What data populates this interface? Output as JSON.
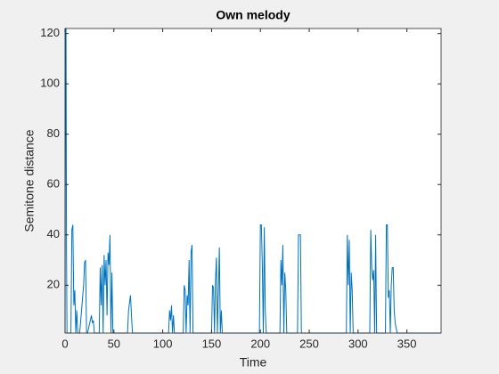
{
  "chart_data": {
    "type": "line",
    "title": "Own melody",
    "xlabel": "Time",
    "ylabel": "Semitone distance",
    "xlim": [
      0,
      385
    ],
    "ylim": [
      1,
      122
    ],
    "xticks": [
      0,
      50,
      100,
      150,
      200,
      250,
      300,
      350
    ],
    "yticks": [
      20,
      40,
      60,
      80,
      100,
      120
    ],
    "grid": false,
    "x": [
      0,
      0.5,
      1,
      1.5,
      2,
      6,
      7,
      8,
      9,
      10,
      11,
      12,
      13,
      14,
      15,
      19,
      20,
      21,
      22,
      23,
      27,
      28,
      29,
      30,
      35,
      36,
      37,
      38,
      39,
      40,
      41,
      42,
      43,
      44,
      45,
      46,
      47,
      48,
      49,
      50,
      64,
      65,
      66,
      67,
      68,
      69,
      106,
      107,
      108,
      109,
      110,
      111,
      112,
      121,
      122,
      123,
      124,
      125,
      126,
      127,
      128,
      129,
      130,
      131,
      132,
      133,
      134,
      135,
      150,
      151,
      152,
      153,
      154,
      155,
      156,
      157,
      158,
      159,
      160,
      161,
      162,
      199,
      200,
      201,
      202,
      203,
      204,
      205,
      206,
      220,
      221,
      222,
      223,
      224,
      225,
      226,
      227,
      228,
      238,
      239,
      240,
      241,
      242,
      243,
      288,
      289,
      290,
      291,
      292,
      293,
      294,
      295,
      296,
      312,
      313,
      314,
      315,
      316,
      317,
      318,
      319,
      328,
      329,
      330,
      331,
      332,
      333,
      334,
      335,
      336,
      337,
      338,
      339,
      340,
      342,
      385
    ],
    "series": [
      {
        "color": "#0072bd",
        "values": [
          1,
          122,
          122,
          35,
          1,
          1,
          42,
          44,
          12,
          18,
          1,
          10,
          1,
          1,
          1,
          20,
          29,
          30,
          1,
          1,
          8,
          5,
          6,
          1,
          1,
          27,
          12,
          28,
          1,
          32,
          20,
          30,
          8,
          33,
          28,
          40,
          1,
          25,
          1,
          1,
          1,
          10,
          13,
          16,
          8,
          1,
          1,
          10,
          6,
          12,
          1,
          8,
          1,
          1,
          20,
          18,
          1,
          16,
          12,
          30,
          1,
          33,
          36,
          1,
          1,
          1,
          1,
          1,
          1,
          20,
          19,
          1,
          22,
          31,
          1,
          17,
          35,
          1,
          10,
          1,
          1,
          1,
          44,
          44,
          28,
          1,
          43,
          10,
          1,
          1,
          30,
          20,
          36,
          1,
          25,
          18,
          1,
          1,
          1,
          40,
          40,
          40,
          1,
          1,
          1,
          40,
          20,
          38,
          1,
          25,
          18,
          1,
          1,
          1,
          42,
          27,
          22,
          26,
          1,
          40,
          1,
          1,
          44,
          44,
          15,
          18,
          1,
          20,
          27,
          27,
          10,
          5,
          3,
          1,
          1,
          1
        ]
      }
    ]
  }
}
